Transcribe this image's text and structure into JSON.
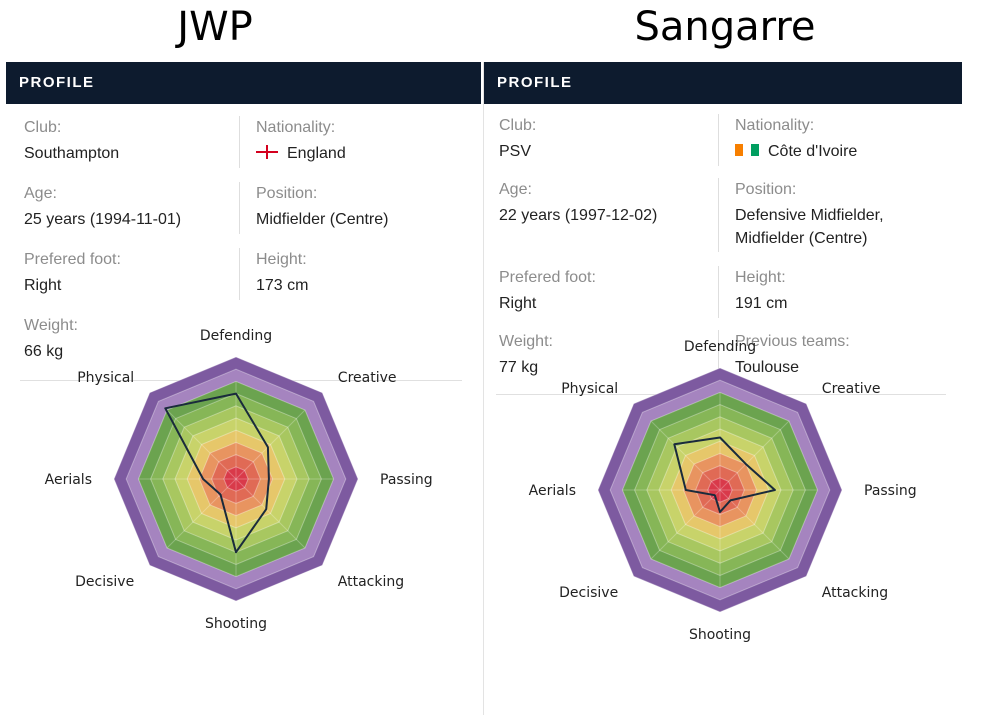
{
  "players": [
    {
      "name": "JWP",
      "header": "PROFILE",
      "club_label": "Club:",
      "club": "Southampton",
      "nationality_label": "Nationality:",
      "nationality": "England",
      "flag_icon": "england-flag-icon",
      "age_label": "Age:",
      "age": "25 years (1994-11-01)",
      "position_label": "Position:",
      "position": "Midfielder (Centre)",
      "foot_label": "Prefered foot:",
      "foot": "Right",
      "height_label": "Height:",
      "height": "173 cm",
      "weight_label": "Weight:",
      "weight": "66 kg"
    },
    {
      "name": "Sangarre",
      "header": "PROFILE",
      "club_label": "Club:",
      "club": "PSV",
      "nationality_label": "Nationality:",
      "nationality": "Côte d'Ivoire",
      "flag_icon": "cote-divoire-flag-icon",
      "age_label": "Age:",
      "age": "22 years (1997-12-02)",
      "position_label": "Position:",
      "position_line1": "Defensive Midfielder,",
      "position_line2": "Midfielder (Centre)",
      "foot_label": "Prefered foot:",
      "foot": "Right",
      "height_label": "Height:",
      "height": "191 cm",
      "weight_label": "Weight:",
      "weight": "77 kg",
      "previous_label": "Previous teams:",
      "previous": "Toulouse"
    }
  ],
  "chart_data": [
    {
      "type": "radar",
      "player": "JWP",
      "axes": [
        "Defending",
        "Creative",
        "Passing",
        "Attacking",
        "Shooting",
        "Decisive",
        "Aerials",
        "Physical"
      ],
      "range": [
        0,
        100
      ],
      "values": [
        70,
        37,
        27,
        35,
        60,
        18,
        27,
        82
      ],
      "band_colors": [
        "#d93a4a",
        "#e06a55",
        "#e89460",
        "#e6c76a",
        "#c8d36a",
        "#a8c760",
        "#86b657",
        "#6ba34f",
        "#a584bf",
        "#7d5aa0"
      ]
    },
    {
      "type": "radar",
      "player": "Sangarre",
      "axes": [
        "Defending",
        "Creative",
        "Passing",
        "Attacking",
        "Shooting",
        "Decisive",
        "Aerials",
        "Physical"
      ],
      "range": [
        0,
        100
      ],
      "values": [
        43,
        30,
        45,
        12,
        18,
        6,
        28,
        53
      ],
      "band_colors": [
        "#d93a4a",
        "#e06a55",
        "#e89460",
        "#e6c76a",
        "#c8d36a",
        "#a8c760",
        "#86b657",
        "#6ba34f",
        "#a584bf",
        "#7d5aa0"
      ]
    }
  ]
}
